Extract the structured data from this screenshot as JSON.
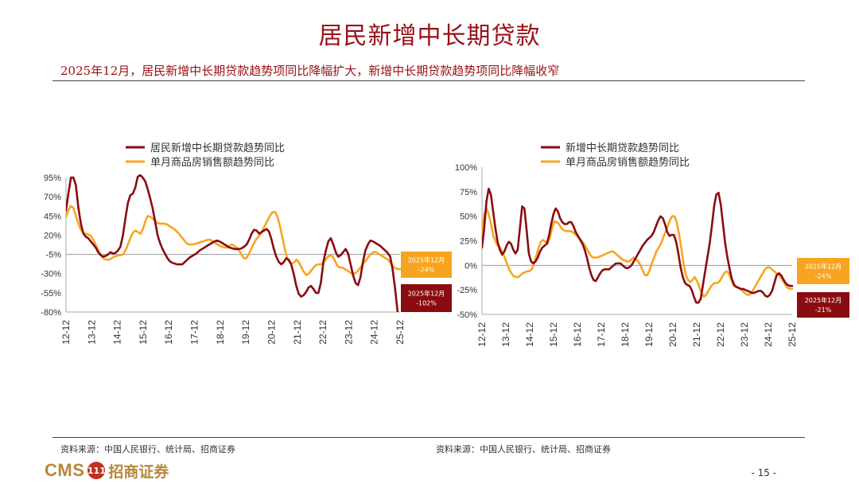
{
  "header": {
    "title": "居民新增中长期贷款",
    "subtitle": "2025年12月，居民新增中长期贷款趋势项同比降幅扩大，新增中长期贷款趋势项同比降幅收窄"
  },
  "footer": {
    "source_left": "资料来源：中国人民银行、统计局、招商证券",
    "source_right": "资料来源：中国人民银行、统计局、招商证券",
    "page_number": "- 15 -",
    "logo_text_en": "CMS",
    "logo_emblem": "111",
    "logo_text_cn": "招商证券"
  },
  "colors": {
    "red": "#9a0f16",
    "orange": "#f7a520",
    "dark_red": "#8a0c10"
  },
  "chart_data": [
    {
      "type": "line",
      "title": "",
      "xticks": [
        "12-12",
        "13-12",
        "14-12",
        "15-12",
        "16-12",
        "17-12",
        "18-12",
        "19-12",
        "20-12",
        "21-12",
        "22-12",
        "23-12",
        "24-12",
        "25-12"
      ],
      "yticks": [
        "95%",
        "70%",
        "45%",
        "20%",
        "-5%",
        "-30%",
        "-55%",
        "-80%"
      ],
      "ylim": [
        -80,
        95
      ],
      "x_start": "2012-12",
      "series": [
        {
          "name": "居民新增中长期贷款趋势同比",
          "color": "#8a0c10",
          "values": [
            52,
            75,
            95,
            95,
            85,
            55,
            35,
            22,
            18,
            16,
            12,
            8,
            4,
            -2,
            -6,
            -8,
            -7,
            -5,
            -2,
            -4,
            -3,
            0,
            5,
            20,
            42,
            62,
            72,
            74,
            82,
            96,
            98,
            95,
            90,
            80,
            68,
            55,
            38,
            20,
            10,
            2,
            -4,
            -10,
            -14,
            -16,
            -17,
            -18,
            -18,
            -18,
            -15,
            -12,
            -9,
            -7,
            -5,
            -3,
            0,
            2,
            4,
            6,
            8,
            10,
            12,
            13,
            12,
            10,
            8,
            6,
            4,
            3,
            2,
            2,
            2,
            3,
            5,
            8,
            14,
            22,
            27,
            26,
            22,
            24,
            26,
            28,
            25,
            15,
            2,
            -8,
            -15,
            -18,
            -15,
            -10,
            -12,
            -18,
            -30,
            -45,
            -56,
            -60,
            -58,
            -54,
            -48,
            -46,
            -50,
            -55,
            -55,
            -42,
            -15,
            0,
            12,
            16,
            8,
            -2,
            -8,
            -6,
            -2,
            2,
            -4,
            -18,
            -32,
            -42,
            -45,
            -35,
            -15,
            0,
            8,
            13,
            12,
            10,
            8,
            6,
            3,
            0,
            -3,
            -8,
            -25,
            -50,
            -80,
            -102
          ]
        },
        {
          "name": "单月商品房销售额趋势同比",
          "color": "#f7a520",
          "values": [
            44,
            52,
            58,
            56,
            46,
            36,
            28,
            24,
            22,
            21,
            20,
            16,
            10,
            3,
            -3,
            -8,
            -11,
            -12,
            -12,
            -10,
            -8,
            -7,
            -6,
            -6,
            -4,
            2,
            10,
            18,
            24,
            26,
            24,
            22,
            28,
            38,
            45,
            44,
            42,
            38,
            36,
            35,
            35,
            35,
            34,
            32,
            30,
            28,
            25,
            22,
            18,
            14,
            10,
            8,
            8,
            8,
            9,
            10,
            11,
            12,
            13,
            14,
            14,
            12,
            10,
            8,
            6,
            5,
            4,
            4,
            6,
            8,
            6,
            4,
            0,
            -5,
            -10,
            -10,
            -5,
            2,
            8,
            14,
            18,
            22,
            28,
            34,
            40,
            46,
            50,
            50,
            44,
            32,
            18,
            2,
            -10,
            -15,
            -17,
            -15,
            -12,
            -16,
            -22,
            -28,
            -32,
            -30,
            -26,
            -22,
            -19,
            -18,
            -18,
            -16,
            -12,
            -8,
            -6,
            -8,
            -14,
            -20,
            -22,
            -22,
            -24,
            -26,
            -28,
            -30,
            -30,
            -28,
            -24,
            -20,
            -16,
            -12,
            -8,
            -4,
            -2,
            -2,
            -4,
            -6,
            -8,
            -10,
            -12,
            -16,
            -20,
            -23,
            -24,
            -24
          ]
        }
      ],
      "callouts": [
        {
          "date": "2025年12月",
          "value": "-24%",
          "color": "#f7a520"
        },
        {
          "date": "2025年12月",
          "value": "-102%",
          "color": "#8a0c10"
        }
      ]
    },
    {
      "type": "line",
      "title": "",
      "xticks": [
        "12-12",
        "13-12",
        "14-12",
        "15-12",
        "16-12",
        "17-12",
        "18-12",
        "19-12",
        "20-12",
        "21-12",
        "22-12",
        "23-12",
        "24-12",
        "25-12"
      ],
      "yticks": [
        "100%",
        "75%",
        "50%",
        "25%",
        "0%",
        "-25%",
        "-50%"
      ],
      "ylim": [
        -50,
        100
      ],
      "x_start": "2012-12",
      "series": [
        {
          "name": "新增中长期贷款趋势同比",
          "color": "#8a0c10",
          "values": [
            18,
            38,
            65,
            78,
            72,
            55,
            38,
            24,
            16,
            11,
            14,
            20,
            24,
            22,
            16,
            12,
            16,
            38,
            60,
            58,
            36,
            12,
            4,
            2,
            4,
            8,
            14,
            18,
            20,
            22,
            30,
            42,
            52,
            58,
            55,
            48,
            44,
            42,
            42,
            44,
            44,
            40,
            34,
            30,
            26,
            22,
            16,
            8,
            -2,
            -10,
            -15,
            -16,
            -12,
            -8,
            -5,
            -4,
            -4,
            -4,
            -2,
            0,
            2,
            2,
            2,
            0,
            -2,
            -3,
            -2,
            0,
            4,
            8,
            12,
            16,
            20,
            23,
            26,
            28,
            30,
            34,
            40,
            46,
            50,
            48,
            42,
            34,
            30,
            31,
            31,
            24,
            12,
            -2,
            -12,
            -18,
            -20,
            -21,
            -25,
            -32,
            -38,
            -38,
            -34,
            -20,
            -6,
            8,
            22,
            40,
            60,
            72,
            74,
            62,
            42,
            22,
            8,
            -4,
            -14,
            -20,
            -22,
            -23,
            -24,
            -24,
            -25,
            -26,
            -27,
            -28,
            -28,
            -27,
            -26,
            -26,
            -28,
            -31,
            -32,
            -30,
            -26,
            -18,
            -10,
            -8,
            -10,
            -14,
            -18,
            -20,
            -21,
            -21
          ]
        },
        {
          "name": "单月商品房销售额趋势同比",
          "color": "#f7a520",
          "values": [
            30,
            52,
            58,
            52,
            42,
            30,
            24,
            20,
            18,
            14,
            8,
            2,
            -4,
            -8,
            -11,
            -12,
            -12,
            -10,
            -8,
            -7,
            -6,
            -6,
            -4,
            2,
            10,
            18,
            24,
            26,
            24,
            22,
            28,
            38,
            45,
            44,
            42,
            38,
            36,
            35,
            35,
            35,
            34,
            32,
            30,
            28,
            25,
            22,
            18,
            14,
            10,
            8,
            8,
            8,
            9,
            10,
            11,
            12,
            13,
            14,
            14,
            12,
            10,
            8,
            6,
            5,
            4,
            4,
            6,
            8,
            6,
            4,
            0,
            -5,
            -10,
            -10,
            -5,
            2,
            8,
            14,
            18,
            22,
            28,
            34,
            40,
            46,
            50,
            50,
            44,
            32,
            18,
            2,
            -10,
            -15,
            -17,
            -15,
            -12,
            -16,
            -22,
            -28,
            -32,
            -30,
            -26,
            -22,
            -19,
            -18,
            -18,
            -16,
            -12,
            -8,
            -6,
            -8,
            -14,
            -20,
            -22,
            -22,
            -24,
            -26,
            -28,
            -30,
            -30,
            -28,
            -24,
            -20,
            -16,
            -12,
            -8,
            -4,
            -2,
            -2,
            -4,
            -6,
            -8,
            -10,
            -12,
            -16,
            -20,
            -23,
            -24,
            -24
          ]
        }
      ],
      "callouts": [
        {
          "date": "2025年12月",
          "value": "-24%",
          "color": "#f7a520"
        },
        {
          "date": "2025年12月",
          "value": "-21%",
          "color": "#8a0c10"
        }
      ]
    }
  ]
}
